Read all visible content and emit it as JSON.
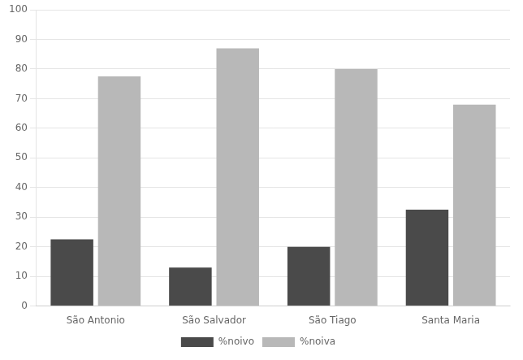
{
  "chart_data": {
    "type": "bar",
    "categories": [
      "São Antonio",
      "São Salvador",
      "São Tiago",
      "Santa Maria"
    ],
    "series": [
      {
        "name": "%noivo",
        "color": "#4a4a4a",
        "values": [
          22.5,
          13.0,
          20.0,
          32.5
        ]
      },
      {
        "name": "%noiva",
        "color": "#b8b8b8",
        "values": [
          77.5,
          87.0,
          80.0,
          68.0
        ]
      }
    ],
    "ylim": [
      0,
      100
    ],
    "yticks": [
      0,
      10,
      20,
      30,
      40,
      50,
      60,
      70,
      80,
      90,
      100
    ],
    "grid": true,
    "legend": "bottom"
  }
}
